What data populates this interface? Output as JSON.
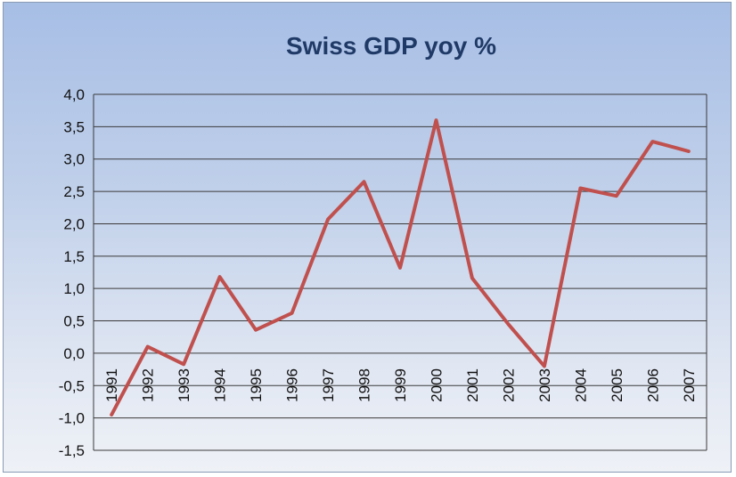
{
  "colors": {
    "line": "#c0504d",
    "grid": "#3a3a3a",
    "title": "#1f3a66"
  },
  "chart_data": {
    "type": "line",
    "title": "Swiss GDP yoy %",
    "xlabel": "",
    "ylabel": "",
    "ylim": [
      -1.5,
      4.0
    ],
    "y_ticks": [
      "4,0",
      "3,5",
      "3,0",
      "2,5",
      "2,0",
      "1,5",
      "1,0",
      "0,5",
      "0,0",
      "-0,5",
      "-1,0",
      "-1,5"
    ],
    "y_tick_values": [
      4.0,
      3.5,
      3.0,
      2.5,
      2.0,
      1.5,
      1.0,
      0.5,
      0.0,
      -0.5,
      -1.0,
      -1.5
    ],
    "categories": [
      "1991",
      "1992",
      "1993",
      "1994",
      "1995",
      "1996",
      "1997",
      "1998",
      "1999",
      "2000",
      "2001",
      "2002",
      "2003",
      "2004",
      "2005",
      "2006",
      "2007"
    ],
    "series": [
      {
        "name": "Swiss GDP yoy %",
        "values": [
          -0.95,
          0.1,
          -0.17,
          1.18,
          0.36,
          0.62,
          2.07,
          2.65,
          1.32,
          3.6,
          1.16,
          0.45,
          -0.2,
          2.55,
          2.43,
          3.27,
          3.12
        ]
      }
    ]
  }
}
